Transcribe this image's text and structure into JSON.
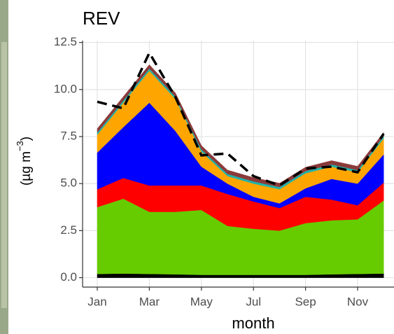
{
  "chart_data": {
    "type": "stacked_area",
    "title": "REV",
    "xlabel": "month",
    "ylabel": [
      "(µg m",
      "−3",
      ")"
    ],
    "categories": [
      "Jan",
      null,
      "Mar",
      null,
      "May",
      null,
      "Jul",
      null,
      "Sep",
      null,
      "Nov",
      null
    ],
    "ylim": [
      -0.5,
      12.6
    ],
    "yticks": [
      {
        "value": 0,
        "label": "0.0"
      },
      2.5,
      {
        "value": 5,
        "label": "5.0"
      },
      7.5,
      {
        "value": 10,
        "label": "10.0"
      },
      12.5
    ],
    "grid": true,
    "series": [
      {
        "color": "#000000",
        "values": [
          0.2,
          0.22,
          0.2,
          0.18,
          0.15,
          0.15,
          0.15,
          0.15,
          0.15,
          0.18,
          0.2,
          0.22
        ]
      },
      {
        "color": "#66cc00",
        "values": [
          3.55,
          3.98,
          3.3,
          3.32,
          3.45,
          2.6,
          2.45,
          2.35,
          2.75,
          2.87,
          2.9,
          3.88
        ]
      },
      {
        "color": "#ff0000",
        "values": [
          0.95,
          1.1,
          1.4,
          1.4,
          1.3,
          1.7,
          1.45,
          1.2,
          1.4,
          1.1,
          0.75,
          0.95
        ]
      },
      {
        "color": "#0000ff",
        "values": [
          1.95,
          2.7,
          4.4,
          2.9,
          1.0,
          0.55,
          0.25,
          0.25,
          0.45,
          1.1,
          1.15,
          1.5
        ]
      },
      {
        "color": "#ffa500",
        "values": [
          0.95,
          1.3,
          1.7,
          1.7,
          0.8,
          0.4,
          0.7,
          0.75,
          0.8,
          0.65,
          0.6,
          0.85
        ]
      },
      {
        "color": "#20b2aa",
        "values": [
          0.12,
          0.12,
          0.12,
          0.12,
          0.12,
          0.12,
          0.12,
          0.12,
          0.12,
          0.12,
          0.12,
          0.12
        ]
      },
      {
        "color": "#8b3a3a",
        "values": [
          0.2,
          0.2,
          0.2,
          0.2,
          0.2,
          0.2,
          0.2,
          0.2,
          0.2,
          0.2,
          0.2,
          0.2
        ]
      }
    ],
    "lines": [
      {
        "color": "#000000",
        "dashed": true,
        "values": [
          9.35,
          9.0,
          11.95,
          9.6,
          6.5,
          6.6,
          5.4,
          4.9,
          5.8,
          5.9,
          5.6,
          7.65
        ]
      }
    ]
  }
}
